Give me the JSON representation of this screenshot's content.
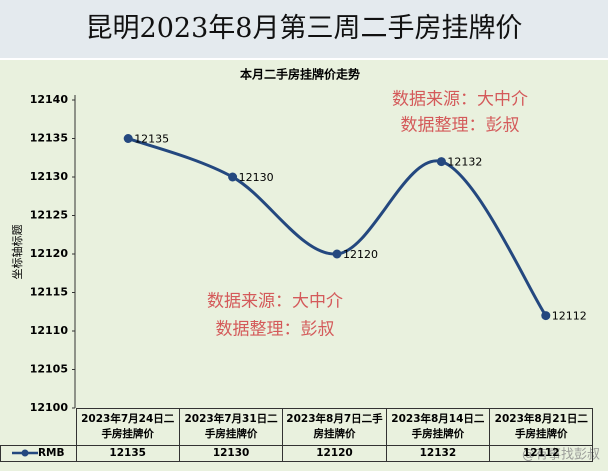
{
  "header": {
    "title": "昆明2023年8月第三周二手房挂牌价"
  },
  "chart_data": {
    "type": "line",
    "title": "本月二手房挂牌价走势",
    "y_label": "坐标轴标题",
    "categories": [
      "2023年7月24日二手房挂牌价",
      "2023年7月31日二手房挂牌价",
      "2023年8月7日二手房挂牌价",
      "2023年8月14日二手房挂牌价",
      "2023年8月21日二手房挂牌价"
    ],
    "series": [
      {
        "name": "RMB",
        "color": "#24487f",
        "values": [
          12135,
          12130,
          12120,
          12132,
          12112
        ]
      }
    ],
    "ylim": [
      12100,
      12140
    ],
    "yticks": [
      12100,
      12105,
      12110,
      12115,
      12120,
      12125,
      12130,
      12135,
      12140
    ],
    "grid": false,
    "annotations": [
      "数据来源：大中介",
      "数据整理：彭叔"
    ]
  },
  "watermark": "@有事找彭叔"
}
